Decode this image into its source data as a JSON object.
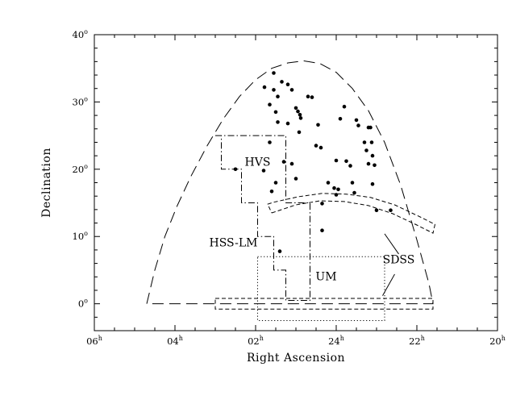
{
  "chart_data": {
    "type": "scatter",
    "title": "",
    "xlabel": "Right Ascension",
    "ylabel": "Declination",
    "x_unit": "hours",
    "y_unit": "degrees",
    "x_direction": "decreasing to the right",
    "xlim": [
      6,
      -4
    ],
    "ylim": [
      -4,
      40
    ],
    "grid": false,
    "x_ticks": [
      {
        "value": 6,
        "label": "06",
        "sup": "h"
      },
      {
        "value": 4,
        "label": "04",
        "sup": "h"
      },
      {
        "value": 2,
        "label": "02",
        "sup": "h"
      },
      {
        "value": 0,
        "label": "24",
        "sup": "h"
      },
      {
        "value": -2,
        "label": "22",
        "sup": "h"
      },
      {
        "value": -4,
        "label": "20",
        "sup": "h"
      }
    ],
    "y_ticks": [
      {
        "value": 0,
        "label": "0",
        "sup": "o"
      },
      {
        "value": 10,
        "label": "10",
        "sup": "o"
      },
      {
        "value": 20,
        "label": "20",
        "sup": "o"
      },
      {
        "value": 30,
        "label": "30",
        "sup": "o"
      },
      {
        "value": 40,
        "label": "40",
        "sup": "o"
      }
    ],
    "regions": [
      {
        "id": "hss-lm",
        "label": "HSS-LM",
        "label_at": [
          2.55,
          8.5
        ],
        "style": "long-dash",
        "points": [
          [
            4.7,
            0
          ],
          [
            4.5,
            5
          ],
          [
            4.25,
            10
          ],
          [
            3.95,
            14.5
          ],
          [
            3.6,
            19
          ],
          [
            3.2,
            23.5
          ],
          [
            2.8,
            27.5
          ],
          [
            2.4,
            30.8
          ],
          [
            2.0,
            33.3
          ],
          [
            1.6,
            35
          ],
          [
            1.2,
            35.8
          ],
          [
            0.8,
            36.1
          ],
          [
            0.4,
            35.7
          ],
          [
            0.0,
            34.4
          ],
          [
            -0.4,
            32
          ],
          [
            -0.8,
            28.7
          ],
          [
            -1.2,
            24
          ],
          [
            -1.6,
            17.6
          ],
          [
            -2.0,
            9.5
          ],
          [
            -2.3,
            3
          ],
          [
            -2.4,
            0
          ],
          [
            4.7,
            0
          ]
        ]
      },
      {
        "id": "hvs",
        "label": "HVS",
        "label_at": [
          1.95,
          20.5
        ],
        "style": "dash-dot",
        "points": [
          [
            3.0,
            25
          ],
          [
            1.25,
            25
          ],
          [
            1.25,
            15
          ],
          [
            0.65,
            15
          ],
          [
            0.65,
            0.5
          ],
          [
            1.25,
            0.5
          ],
          [
            1.25,
            5
          ],
          [
            1.55,
            5
          ],
          [
            1.55,
            10
          ],
          [
            1.95,
            10
          ],
          [
            1.95,
            15
          ],
          [
            2.35,
            15
          ],
          [
            2.35,
            20
          ],
          [
            2.85,
            20
          ],
          [
            2.85,
            25
          ],
          [
            3.0,
            25
          ]
        ]
      },
      {
        "id": "um",
        "label": "UM",
        "label_at": [
          0.25,
          3.5
        ],
        "style": "dotted",
        "points": [
          [
            1.95,
            7
          ],
          [
            -1.2,
            7
          ],
          [
            -1.2,
            -2.5
          ],
          [
            1.95,
            -2.5
          ],
          [
            1.95,
            7
          ]
        ]
      },
      {
        "id": "sdss-stripe-a",
        "label": "",
        "style": "short-dash",
        "points": [
          [
            1.6,
            13.5
          ],
          [
            1.0,
            14.7
          ],
          [
            0.4,
            15.3
          ],
          [
            -0.2,
            15.2
          ],
          [
            -0.8,
            14.6
          ],
          [
            -1.4,
            13.4
          ],
          [
            -2.0,
            11.7
          ],
          [
            -2.4,
            10.5
          ],
          [
            -2.45,
            11.8
          ],
          [
            -2.05,
            13.0
          ],
          [
            -1.45,
            14.7
          ],
          [
            -0.85,
            15.8
          ],
          [
            -0.25,
            16.3
          ],
          [
            0.35,
            16.4
          ],
          [
            0.95,
            15.9
          ],
          [
            1.55,
            15.1
          ],
          [
            1.7,
            14.8
          ],
          [
            1.6,
            13.5
          ]
        ]
      },
      {
        "id": "sdss-stripe-b",
        "label": "",
        "style": "short-dash",
        "points": [
          [
            3.0,
            0.8
          ],
          [
            -2.4,
            0.8
          ],
          [
            -2.4,
            -0.8
          ],
          [
            3.0,
            -0.8
          ],
          [
            3.0,
            0.8
          ]
        ]
      },
      {
        "id": "sdss",
        "label": "SDSS",
        "label_at": [
          -1.55,
          6.0
        ],
        "style": "leader",
        "leaders": [
          [
            [
              -1.2,
              10.4
            ],
            [
              -1.55,
              7.4
            ]
          ],
          [
            [
              -1.45,
              4.4
            ],
            [
              -1.15,
              1.2
            ]
          ]
        ]
      }
    ],
    "series": [
      {
        "x": [
          1.78,
          1.55,
          1.35,
          1.55,
          1.45,
          1.65,
          1.5,
          1.2,
          1.1,
          1.0,
          0.9,
          0.95,
          0.88,
          0.92,
          0.7,
          0.6,
          0.45,
          0.5,
          0.38,
          1.2,
          1.65,
          1.45,
          1.8,
          2.5,
          1.0,
          1.1,
          1.3,
          1.5,
          1.6,
          0.35,
          -0.2,
          -0.1,
          -0.25,
          -0.35,
          -0.4,
          -0.5,
          -0.55,
          -0.7,
          -0.8,
          -0.85,
          -0.75,
          -0.9,
          -0.95,
          -0.8,
          -0.88,
          -0.9,
          -1.0,
          0.2,
          0.05,
          0.0,
          -0.05,
          0.0,
          -0.45,
          0.35,
          1.4,
          -1.35
        ],
        "y": [
          32.2,
          34.3,
          33.0,
          31.8,
          30.8,
          29.6,
          28.5,
          32.6,
          31.8,
          29.1,
          28.1,
          28.6,
          27.6,
          25.5,
          30.8,
          30.7,
          26.6,
          23.5,
          23.2,
          26.8,
          24.0,
          27.0,
          19.8,
          20.0,
          18.6,
          20.8,
          21.1,
          18.0,
          16.7,
          14.9,
          29.3,
          27.5,
          21.2,
          20.5,
          18.0,
          27.3,
          26.5,
          24.0,
          26.2,
          26.2,
          22.8,
          22.0,
          20.6,
          20.8,
          24.0,
          17.8,
          13.9,
          18.0,
          17.2,
          16.2,
          17.0,
          21.3,
          16.5,
          10.9,
          7.8,
          13.9
        ]
      }
    ]
  }
}
